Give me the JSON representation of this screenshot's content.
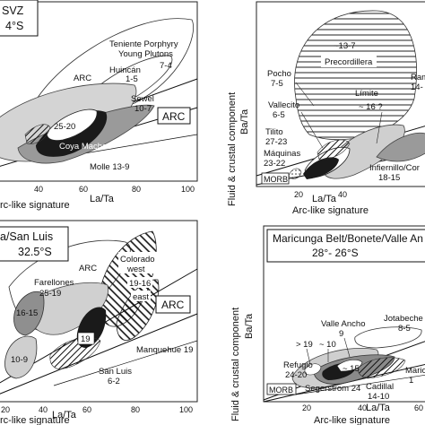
{
  "panels": {
    "tl": {
      "title_line1": "SVZ",
      "title_line2": "4°S",
      "arc_box": "ARC",
      "xlabel": "La/Ta",
      "xlabel2": "rc-like signature",
      "xticks": [
        "40",
        "60",
        "80",
        "100"
      ],
      "labels": {
        "teniente": "Teniente Porphyry",
        "young": "Young Plutons",
        "range_74": "7-4",
        "huincan": "Huincán",
        "huincan_range": "1-5",
        "arc": "ARC",
        "sewel": "Sewel",
        "sewel_range": "10-7",
        "r2520": "25-20",
        "coya": "Coya Machalí",
        "molle": "Molle 13-9"
      }
    },
    "tr": {
      "ylabel": "Fluid & crustal component",
      "ylabel2": "Ba/Ta",
      "xlabel": "La/Ta",
      "xlabel2": "Arc-like signature",
      "xticks": [
        "20",
        "40"
      ],
      "morb": "MORB",
      "labels": {
        "r137": "~13-7",
        "precordillera": "Precordillera",
        "pocho": "Pocho",
        "pocho_range": "7-5",
        "vallecito": "Vallecito",
        "vallecito_range": "6-5",
        "limite": "Límite",
        "limite_range": "~ 16 ?",
        "tilito": "Tilito",
        "tilito_range": "27-23",
        "maquinas": "Máquinas",
        "maquinas_range": "23-22",
        "infiernillo": "Infiernillo/Cor",
        "infiernillo_range": "18-15",
        "ram": "Ram",
        "ram_range": "14-"
      }
    },
    "bl": {
      "title_line1": "a/San Luis",
      "title_line2": "32.5°S",
      "arc_box": "ARC",
      "xlabel": "La/Ta",
      "xlabel2": "rc-like signature",
      "xticks": [
        "20",
        "40",
        "60",
        "80",
        "100"
      ],
      "labels": {
        "arc": "ARC",
        "farellones": "Farellones",
        "farellones_range": "25-19",
        "colorado": "Colorado",
        "west": "west",
        "r1916": "19-16",
        "east": "east",
        "r1615": "16-15",
        "r19": "19",
        "r109": "10-9",
        "sanluis": "San Luis",
        "sanluis_range": "6-2",
        "manquehue": "Manquehue 19"
      }
    },
    "br": {
      "title_line1": "Maricunga Belt/Bonete/Valle An",
      "title_line2": "28°- 26°S",
      "ylabel": "Fluid & crustal component",
      "ylabel2": "Ba/Ta",
      "xlabel": "La/Ta",
      "xlabel2": "Arc-like signature",
      "xticks": [
        "20",
        "40",
        "60"
      ],
      "morb": "MORB",
      "labels": {
        "valleancho": "Valle Ancho",
        "valleancho_range": "9",
        "jotabeche": "Jotabeche",
        "jotabeche_range": "8-5",
        "gt19": "> 19",
        "sim10": "~ 10",
        "sim15": "~ 15",
        "refugio": "Refugio",
        "refugio_range": "24-20",
        "cadillal": "Cadillal",
        "cadillal_range": "14-10",
        "mari": "Mario",
        "mari_range": "1",
        "segerstrom": "Segerstrom 24"
      }
    }
  }
}
